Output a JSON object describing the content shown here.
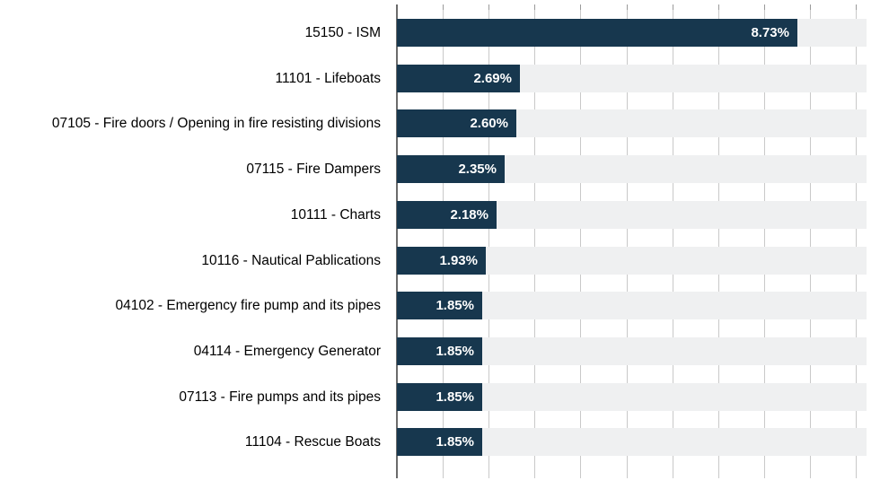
{
  "chart_data": {
    "type": "bar",
    "orientation": "horizontal",
    "title": "",
    "xlabel": "",
    "ylabel": "",
    "categories": [
      "15150 - ISM",
      "11101 - Lifeboats",
      "07105 - Fire doors / Opening in fire resisting divisions",
      "07115 - Fire Dampers",
      "10111 - Charts",
      "10116 - Nautical Pablications",
      "04102 - Emergency fire pump and its pipes",
      "04114 - Emergency Generator",
      "07113 - Fire pumps and its pipes",
      "11104 - Rescue Boats"
    ],
    "values": [
      8.73,
      2.69,
      2.6,
      2.35,
      2.18,
      1.93,
      1.85,
      1.85,
      1.85,
      1.85
    ],
    "value_labels": [
      "8.73%",
      "2.69%",
      "2.60%",
      "2.35%",
      "2.18%",
      "1.93%",
      "1.85%",
      "1.85%",
      "1.85%",
      "1.85%"
    ],
    "xlim": [
      0,
      10
    ],
    "gridline_interval": 1,
    "grid": true,
    "legend": false,
    "colors": {
      "bar": "#17374e",
      "row_stripe": "#eff0f1",
      "gridline": "#c9c9c9",
      "gridline_tick": "#9a9a9a",
      "axis_line": "#6b6b6b",
      "value_label": "#ffffff",
      "category_label": "#000000",
      "background": "#ffffff"
    }
  }
}
